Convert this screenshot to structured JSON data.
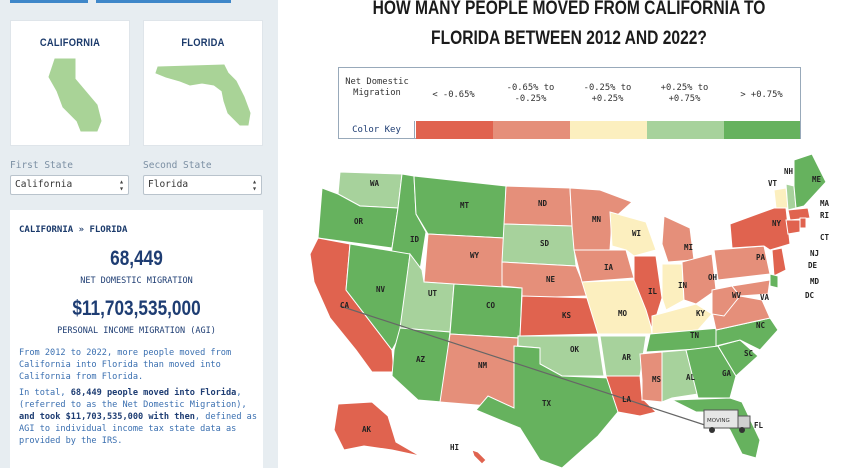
{
  "states": {
    "left": {
      "name": "CALIFORNIA",
      "label": "First State",
      "value": "California"
    },
    "right": {
      "name": "FLORIDA",
      "label": "Second State",
      "value": "Florida"
    }
  },
  "summary": {
    "breadcrumb": "CALIFORNIA » FLORIDA",
    "net_migration": "68,449",
    "net_migration_label": "NET DOMESTIC MIGRATION",
    "agi": "$11,703,535,000",
    "agi_label": "PERSONAL INCOME MIGRATION (AGI)",
    "para1": "From 2012 to 2022, more people moved from California into Florida than moved into California from Florida.",
    "para2_a": "In total, ",
    "para2_b": "68,449 people moved into Florida",
    "para2_c": ", (referred to as the Net Domestic Migration), ",
    "para2_d": "and took $11,703,535,000 with then",
    "para2_e": ", defined as AGI to individual income tax state data as provided by the IRS."
  },
  "title": "HOW MANY PEOPLE MOVED FROM CALIFORNIA TO FLORIDA BETWEEN 2012 AND 2022?",
  "legend": {
    "header": "Net Domestic Migration",
    "key_label": "Color Key",
    "ranges": [
      {
        "label": "< -0.65%",
        "color": "#e0634f"
      },
      {
        "label": "-0.65% to -0.25%",
        "color": "#e58f7a"
      },
      {
        "label": "-0.25% to +0.25%",
        "color": "#fcefbf"
      },
      {
        "label": "+0.25% to +0.75%",
        "color": "#a7d29c"
      },
      {
        "label": "> +0.75%",
        "color": "#66b25e"
      }
    ]
  },
  "map": {
    "state_labels": [
      "WA",
      "OR",
      "CA",
      "ID",
      "NV",
      "MT",
      "WY",
      "UT",
      "AZ",
      "CO",
      "NM",
      "ND",
      "SD",
      "NE",
      "KS",
      "OK",
      "TX",
      "MN",
      "IA",
      "MO",
      "AR",
      "LA",
      "WI",
      "IL",
      "MI",
      "IN",
      "OH",
      "KY",
      "TN",
      "MS",
      "AL",
      "GA",
      "FL",
      "SC",
      "NC",
      "VA",
      "WV",
      "PA",
      "NY",
      "VT",
      "NH",
      "ME",
      "MA",
      "RI",
      "CT",
      "NJ",
      "DE",
      "MD",
      "DC",
      "AK",
      "HI"
    ],
    "truck_label": "MOVING"
  },
  "colors": {
    "navy": "#1e3d73",
    "accent": "#3f87c9"
  }
}
